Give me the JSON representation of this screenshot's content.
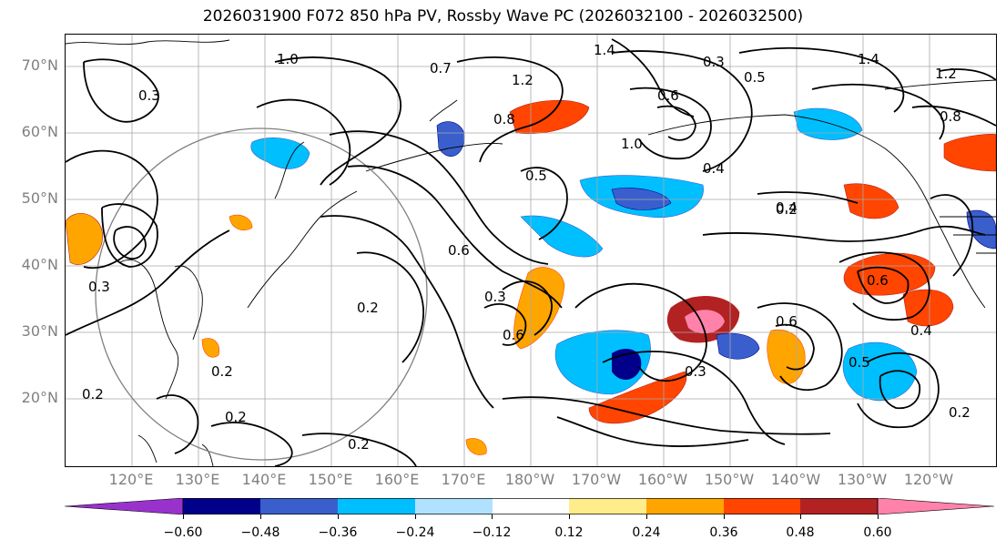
{
  "title": "2026031900 F072 850 hPa PV, Rossby Wave PC (2026032100 - 2026032500)",
  "map": {
    "lat_axis": [
      "70°N",
      "60°N",
      "50°N",
      "40°N",
      "30°N",
      "20°N"
    ],
    "lon_axis": [
      "120°E",
      "130°E",
      "140°E",
      "150°E",
      "160°E",
      "170°E",
      "180°W",
      "170°W",
      "160°W",
      "150°W",
      "140°W",
      "130°W",
      "120°W"
    ],
    "contour_labels": [
      "1.0",
      "0.7",
      "1.2",
      "1.4",
      "0.3",
      "0.5",
      "0.8",
      "1.0",
      "0.6",
      "0.4",
      "0.5",
      "0.3",
      "0.4",
      "0.2",
      "0.6",
      "0.3",
      "0.6",
      "0.2",
      "0.2",
      "0.2",
      "0.2",
      "0.3",
      "0.2",
      "0.4",
      "0.6",
      "0.5",
      "0.6",
      "0.3",
      "0.2",
      "0.8",
      "1.2",
      "1.4"
    ]
  },
  "colorbar": {
    "ticks": [
      "−0.60",
      "−0.48",
      "−0.36",
      "−0.24",
      "−0.12",
      "0.12",
      "0.24",
      "0.36",
      "0.48",
      "0.60"
    ],
    "colors": [
      "#9932cc",
      "#00008b",
      "#3a5fcd",
      "#00bfff",
      "#b0e2ff",
      "#ffffff",
      "#ffec8b",
      "#ffa500",
      "#ff4500",
      "#b22222",
      "#ff82ab"
    ]
  }
}
